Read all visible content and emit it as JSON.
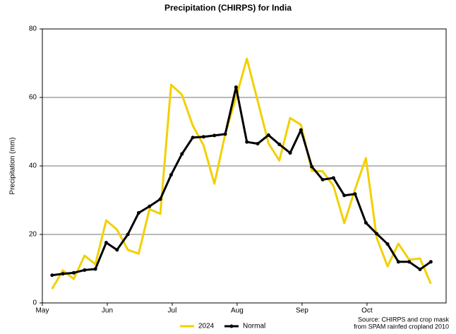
{
  "chart_data": {
    "type": "line",
    "title": "Precipitation (CHIRPS) for India",
    "y_label": "Precipitation (mm)",
    "source": [
      "Source: CHIRPS and crop mask",
      "from SPAM rainfed cropland 2010"
    ],
    "categories": [
      "May",
      null,
      null,
      null,
      null,
      null,
      "Jun",
      null,
      null,
      null,
      null,
      null,
      "Jul",
      null,
      null,
      null,
      null,
      null,
      "Aug",
      null,
      null,
      null,
      null,
      null,
      "Sep",
      null,
      null,
      null,
      null,
      null,
      "Oct",
      null,
      null,
      null,
      null,
      null
    ],
    "series": [
      {
        "name": "2024",
        "color": "#f2d000",
        "markers": false,
        "values": [
          4.1,
          9.5,
          7.0,
          13.8,
          11.3,
          24.1,
          21.4,
          15.5,
          14.4,
          27.4,
          26.0,
          63.7,
          60.8,
          51.8,
          46.0,
          34.8,
          49.3,
          60.0,
          71.3,
          59.0,
          46.6,
          41.6,
          54.0,
          52.0,
          38.6,
          38.4,
          34.2,
          23.3,
          33.2,
          42.3,
          19.0,
          10.7,
          17.3,
          12.6,
          13.0,
          5.6
        ]
      },
      {
        "name": "Normal",
        "color": "#000000",
        "markers": true,
        "values": [
          8.1,
          8.5,
          8.8,
          9.6,
          9.9,
          17.6,
          15.5,
          20.0,
          26.3,
          28.2,
          30.3,
          37.4,
          43.5,
          48.3,
          48.5,
          48.9,
          49.3,
          63.0,
          47.0,
          46.5,
          49.0,
          46.3,
          43.8,
          50.5,
          39.8,
          36.0,
          36.5,
          31.4,
          31.8,
          23.4,
          20.2,
          17.2,
          12.0,
          12.0,
          9.8,
          12.0
        ]
      }
    ],
    "ylim": [
      0,
      80
    ],
    "yticks": [
      0,
      20,
      40,
      60,
      80
    ],
    "grid": true,
    "legend": "bottom"
  }
}
